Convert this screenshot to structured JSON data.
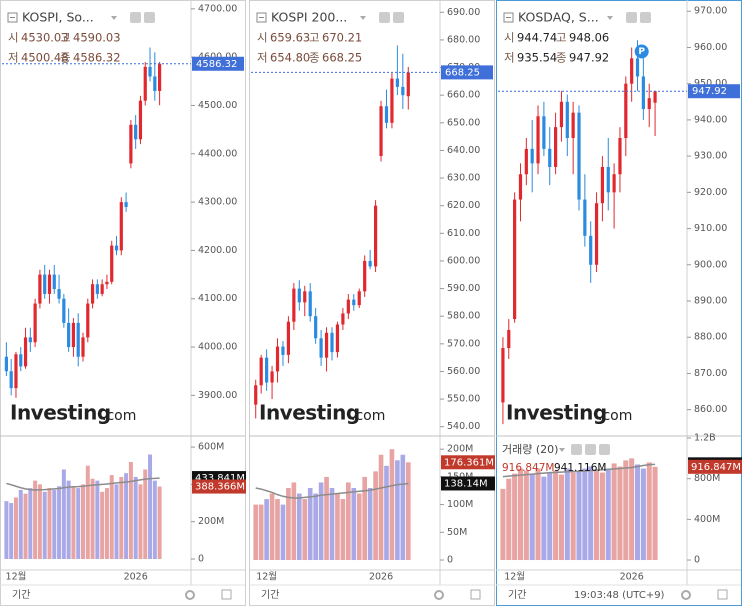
{
  "chart_data": [
    {
      "type": "candlestick",
      "title": "KOSPI, So...",
      "ohlc_names": [
        "시",
        "고",
        "저",
        "종"
      ],
      "ohlc_value_labels": [
        "4530.03",
        "4590.03",
        "4500.48",
        "4586.32"
      ],
      "up_color": "#e0282e",
      "down_color": "#2a8be0",
      "volume_up_color": "#e8a3a3",
      "volume_down_color": "#a9a9e8",
      "ma_color": "#8c8c8c",
      "categories": [
        null,
        null,
        "12월",
        null,
        null,
        null,
        null,
        null,
        null,
        null,
        null,
        null,
        null,
        null,
        null,
        null,
        null,
        null,
        null,
        null,
        null,
        null,
        null,
        null,
        null,
        null,
        null,
        "2026",
        null,
        null,
        null,
        null,
        null
      ],
      "candles": [
        [
          3980,
          4010,
          3940,
          3950
        ],
        [
          3950,
          3975,
          3900,
          3915
        ],
        [
          3915,
          3990,
          3895,
          3985
        ],
        [
          3985,
          4000,
          3950,
          3960
        ],
        [
          3960,
          4040,
          3955,
          4020
        ],
        [
          4020,
          4040,
          3990,
          4010
        ],
        [
          4010,
          4100,
          4000,
          4090
        ],
        [
          4090,
          4160,
          4080,
          4150
        ],
        [
          4150,
          4170,
          4100,
          4110
        ],
        [
          4110,
          4160,
          4090,
          4150
        ],
        [
          4150,
          4170,
          4110,
          4120
        ],
        [
          4120,
          4150,
          4090,
          4100
        ],
        [
          4100,
          4110,
          4040,
          4050
        ],
        [
          4050,
          4080,
          3990,
          4000
        ],
        [
          4000,
          4060,
          3980,
          4050
        ],
        [
          4050,
          4070,
          3960,
          3980
        ],
        [
          3980,
          4030,
          3970,
          4020
        ],
        [
          4020,
          4100,
          4010,
          4090
        ],
        [
          4090,
          4140,
          4080,
          4130
        ],
        [
          4130,
          4140,
          4100,
          4110
        ],
        [
          4110,
          4140,
          4105,
          4130
        ],
        [
          4130,
          4150,
          4120,
          4135
        ],
        [
          4135,
          4220,
          4130,
          4210
        ],
        [
          4210,
          4230,
          4190,
          4200
        ],
        [
          4200,
          4310,
          4190,
          4300
        ],
        [
          4300,
          4320,
          4280,
          4290
        ],
        [
          4380,
          4470,
          4370,
          4460
        ],
        [
          4460,
          4480,
          4410,
          4430
        ],
        [
          4430,
          4520,
          4420,
          4510
        ],
        [
          4510,
          4590,
          4500,
          4580
        ],
        [
          4580,
          4620,
          4550,
          4560
        ],
        [
          4560,
          4610,
          4510,
          4530
        ],
        [
          4530.03,
          4590.03,
          4500.48,
          4586.32
        ]
      ],
      "ylim": [
        3818,
        4710
      ],
      "yticks": [
        {
          "value": 3900,
          "label": "3900.00"
        },
        {
          "value": 4000,
          "label": "4000.00"
        },
        {
          "value": 4100,
          "label": "4100.00"
        },
        {
          "value": 4200,
          "label": "4200.00"
        },
        {
          "value": 4300,
          "label": "4300.00"
        },
        {
          "value": 4400,
          "label": "4400.00"
        },
        {
          "value": 4500,
          "label": "4500.00"
        },
        {
          "value": 4600,
          "label": "4600.00"
        },
        {
          "value": 4700,
          "label": "4700.00"
        }
      ],
      "volume": [
        310,
        300,
        330,
        370,
        350,
        380,
        420,
        400,
        360,
        380,
        370,
        390,
        480,
        420,
        390,
        380,
        400,
        500,
        430,
        420,
        360,
        380,
        450,
        400,
        440,
        460,
        520,
        440,
        400,
        480,
        560,
        420,
        388.366
      ],
      "volume_ma": [
        405,
        398,
        390,
        382,
        376,
        372,
        370,
        371,
        372,
        374,
        376,
        378,
        382,
        385,
        387,
        388,
        390,
        393,
        396,
        398,
        400,
        402,
        405,
        408,
        410,
        412,
        416,
        420,
        424,
        428,
        431,
        432,
        433.841
      ],
      "volume_ylim": [
        -59,
        654
      ],
      "volume_ticks": [
        0,
        {
          "value": 200,
          "label": "200M"
        },
        {
          "value": 400,
          "label": "400M"
        },
        {
          "value": 600,
          "label": "600M"
        }
      ],
      "last_volume_label": "388.366M",
      "volume_ma_label": "433.841M",
      "period_label": "기간"
    },
    {
      "type": "candlestick",
      "title": "KOSPI 200...",
      "ohlc_names": [
        "시",
        "고",
        "저",
        "종"
      ],
      "ohlc_value_labels": [
        "659.63",
        "670.21",
        "654.80",
        "668.25"
      ],
      "up_color": "#e0282e",
      "down_color": "#2a8be0",
      "volume_up_color": "#e8a3a3",
      "volume_down_color": "#a9a9e8",
      "ma_color": "#8c8c8c",
      "categories": [
        null,
        null,
        "12월",
        null,
        null,
        null,
        null,
        null,
        null,
        null,
        null,
        null,
        null,
        null,
        null,
        null,
        null,
        null,
        null,
        null,
        null,
        null,
        null,
        "2026",
        null,
        null,
        null,
        null,
        null
      ],
      "candles": [
        [
          548,
          557,
          543,
          555
        ],
        [
          555,
          566,
          552,
          565
        ],
        [
          565,
          568,
          553,
          556
        ],
        [
          556,
          562,
          550,
          560
        ],
        [
          560,
          572,
          556,
          569
        ],
        [
          569,
          571,
          562,
          566
        ],
        [
          566,
          580,
          563,
          578
        ],
        [
          578,
          592,
          575,
          590
        ],
        [
          590,
          593,
          582,
          585
        ],
        [
          585,
          591,
          580,
          589
        ],
        [
          589,
          592,
          578,
          580
        ],
        [
          580,
          583,
          570,
          572
        ],
        [
          572,
          575,
          562,
          565
        ],
        [
          565,
          576,
          560,
          574
        ],
        [
          574,
          576,
          564,
          567
        ],
        [
          567,
          578,
          565,
          577
        ],
        [
          577,
          583,
          575,
          581
        ],
        [
          581,
          588,
          579,
          586
        ],
        [
          586,
          588,
          582,
          584
        ],
        [
          584,
          590,
          583,
          589
        ],
        [
          589,
          602,
          587,
          600
        ],
        [
          600,
          604,
          597,
          598
        ],
        [
          598,
          622,
          596,
          620
        ],
        [
          638,
          658,
          636,
          656
        ],
        [
          656,
          662,
          648,
          650
        ],
        [
          650,
          668,
          648,
          666
        ],
        [
          666,
          678,
          660,
          663
        ],
        [
          663,
          675,
          655,
          660
        ],
        [
          659.63,
          670.21,
          654.8,
          668.25
        ]
      ],
      "ylim": [
        537,
        693
      ],
      "yticks": [
        {
          "value": 540,
          "label": "540.00"
        },
        {
          "value": 550,
          "label": "550.00"
        },
        {
          "value": 560,
          "label": "560.00"
        },
        {
          "value": 570,
          "label": "570.00"
        },
        {
          "value": 580,
          "label": "580.00"
        },
        {
          "value": 590,
          "label": "590.00"
        },
        {
          "value": 600,
          "label": "600.00"
        },
        {
          "value": 610,
          "label": "610.00"
        },
        {
          "value": 620,
          "label": "620.00"
        },
        {
          "value": 630,
          "label": "630.00"
        },
        {
          "value": 640,
          "label": "640.00"
        },
        {
          "value": 650,
          "label": "650.00"
        },
        {
          "value": 660,
          "label": "660.00"
        },
        {
          "value": 670,
          "label": "670.00"
        },
        {
          "value": 680,
          "label": "680.00"
        },
        {
          "value": 690,
          "label": "690.00"
        }
      ],
      "volume": [
        100,
        100,
        110,
        120,
        110,
        100,
        130,
        140,
        120,
        110,
        130,
        120,
        140,
        150,
        130,
        120,
        110,
        140,
        130,
        120,
        150,
        130,
        160,
        190,
        170,
        200,
        180,
        190,
        176.361
      ],
      "volume_ma": [
        130,
        128,
        125,
        122,
        118,
        115,
        113,
        112,
        112,
        113,
        114,
        115,
        117,
        118,
        119,
        120,
        121,
        122,
        123,
        124,
        125,
        126,
        128,
        130,
        132,
        134,
        136,
        137,
        138.14
      ],
      "volume_ylim": [
        -18,
        222
      ],
      "volume_ticks": [
        0,
        {
          "value": 50,
          "label": "50M"
        },
        {
          "value": 100,
          "label": "100M"
        },
        {
          "value": 150,
          "label": "150M"
        },
        {
          "value": 200,
          "label": "200M"
        }
      ],
      "last_volume_label": "176.361M",
      "volume_ma_label": "138.14M",
      "period_label": "기간"
    },
    {
      "type": "candlestick",
      "title": "KOSDAQ, S...",
      "ohlc_names": [
        "시",
        "고",
        "저",
        "종"
      ],
      "ohlc_value_labels": [
        "944.74",
        "948.06",
        "935.54",
        "947.92"
      ],
      "up_color": "#e0282e",
      "down_color": "#2a8be0",
      "volume_up_color": "#e8a3a3",
      "volume_down_color": "#a9a9e8",
      "ma_color": "#8c8c8c",
      "categories": [
        null,
        null,
        "12월",
        null,
        null,
        null,
        null,
        null,
        null,
        null,
        null,
        null,
        null,
        null,
        null,
        null,
        null,
        null,
        null,
        null,
        null,
        null,
        "2026",
        null,
        null,
        null,
        null
      ],
      "candles": [
        [
          862,
          880,
          856,
          877
        ],
        [
          877,
          885,
          874,
          882
        ],
        [
          885,
          920,
          884,
          918
        ],
        [
          918,
          928,
          912,
          925
        ],
        [
          925,
          935,
          922,
          932
        ],
        [
          932,
          940,
          920,
          928
        ],
        [
          928,
          944,
          925,
          941
        ],
        [
          941,
          945,
          930,
          932
        ],
        [
          932,
          938,
          922,
          927
        ],
        [
          927,
          942,
          925,
          938
        ],
        [
          938,
          948,
          934,
          945
        ],
        [
          945,
          947,
          930,
          935
        ],
        [
          935,
          945,
          925,
          942
        ],
        [
          942,
          944,
          915,
          918
        ],
        [
          918,
          925,
          905,
          908
        ],
        [
          908,
          912,
          895,
          900
        ],
        [
          900,
          920,
          898,
          917
        ],
        [
          917,
          930,
          912,
          927
        ],
        [
          927,
          935,
          915,
          920
        ],
        [
          920,
          928,
          910,
          925
        ],
        [
          925,
          938,
          920,
          935
        ],
        [
          935,
          952,
          930,
          950
        ],
        [
          950,
          960,
          945,
          957
        ],
        [
          957,
          962,
          948,
          952
        ],
        [
          952,
          958,
          940,
          943
        ],
        [
          943,
          950,
          938,
          946
        ],
        [
          944.74,
          948.06,
          935.54,
          947.92
        ]
      ],
      "ylim": [
        853,
        972
      ],
      "yticks": [
        {
          "value": 860,
          "label": "860.00"
        },
        {
          "value": 870,
          "label": "870.00"
        },
        {
          "value": 880,
          "label": "880.00"
        },
        {
          "value": 890,
          "label": "890.00"
        },
        {
          "value": 900,
          "label": "900.00"
        },
        {
          "value": 910,
          "label": "910.00"
        },
        {
          "value": 920,
          "label": "920.00"
        },
        {
          "value": 930,
          "label": "930.00"
        },
        {
          "value": 940,
          "label": "940.00"
        },
        {
          "value": 950,
          "label": "950.00"
        },
        {
          "value": 960,
          "label": "960.00"
        },
        {
          "value": 970,
          "label": "970.00"
        }
      ],
      "volume": [
        700,
        800,
        850,
        900,
        880,
        850,
        900,
        820,
        860,
        880,
        840,
        900,
        860,
        870,
        900,
        920,
        880,
        860,
        900,
        950,
        920,
        980,
        1000,
        940,
        900,
        960,
        916.847
      ],
      "volume_ma": [
        820,
        825,
        830,
        835,
        840,
        845,
        850,
        855,
        860,
        862,
        865,
        868,
        870,
        873,
        876,
        880,
        884,
        888,
        892,
        896,
        900,
        905,
        910,
        920,
        930,
        938,
        941.116
      ],
      "volume_ylim": [
        -98,
        1210
      ],
      "volume_ticks": [
        0,
        {
          "value": 400,
          "label": "400M"
        },
        {
          "value": 800,
          "label": "800M"
        },
        {
          "value": 1200,
          "label": "1.2B"
        }
      ],
      "last_volume_label": "916.847M",
      "volume_ma_label": "941.116M",
      "volume_legend": "거래량 (20)",
      "marker_label": "P",
      "period_label": "기간"
    }
  ],
  "watermark": [
    "Investing",
    ".com"
  ],
  "clock": "19:03:48 (UTC+9)"
}
